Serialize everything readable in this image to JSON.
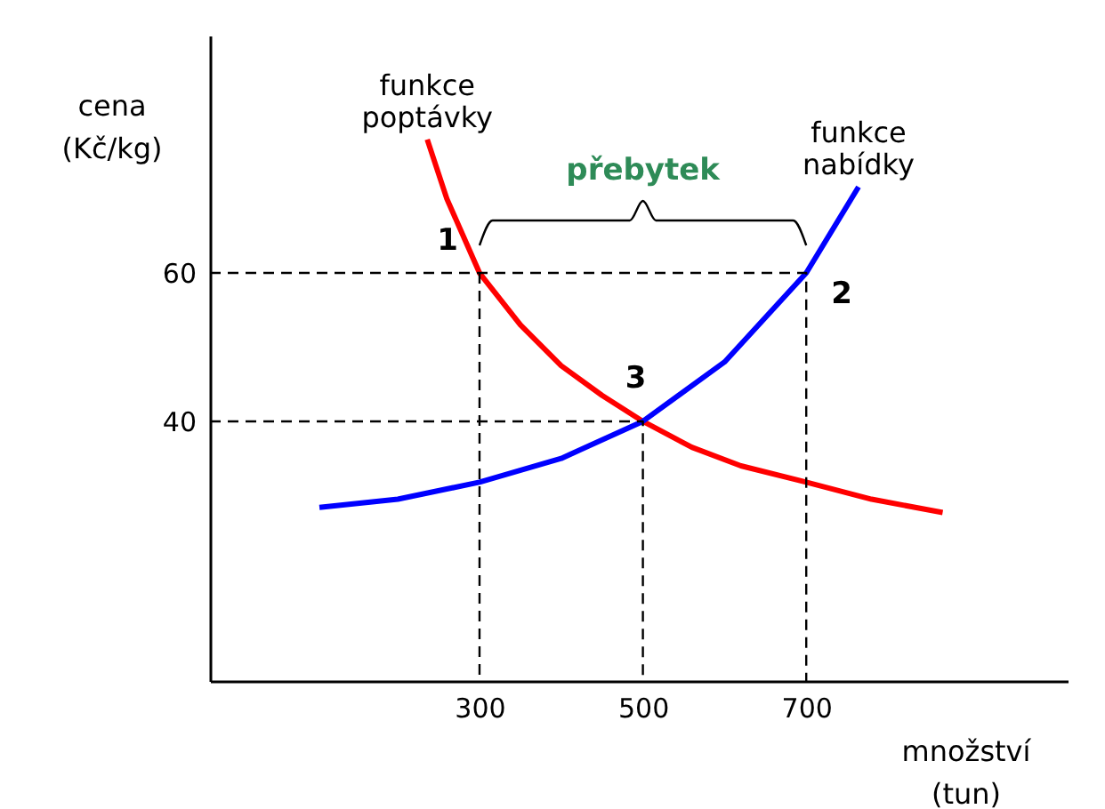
{
  "chart_data": {
    "type": "line",
    "xlabel": "množství (tun)",
    "ylabel": "cena (Kč/kg)",
    "xlim": [
      -30,
      1020
    ],
    "ylim": [
      5,
      92
    ],
    "xticks": [
      300,
      500,
      700
    ],
    "yticks": [
      40,
      60
    ],
    "grid": false,
    "series": [
      {
        "name": "funkce poptávky",
        "color": "#ff0000",
        "x": [
          236,
          260,
          300,
          350,
          400,
          450,
          500,
          560,
          620,
          700,
          780,
          867
        ],
        "values": [
          78,
          70,
          60,
          53,
          47.5,
          43.5,
          40,
          36.5,
          34,
          31.8,
          29.5,
          27.7
        ]
      },
      {
        "name": "funkce nabídky",
        "color": "#0000ff",
        "x": [
          104,
          200,
          300,
          400,
          500,
          600,
          700,
          764
        ],
        "values": [
          28.4,
          29.5,
          31.8,
          35,
          40,
          48,
          60,
          71.6
        ]
      },
      {
        "type": "line",
        "line_style": "dashed",
        "color": "#000000",
        "x": [
          -30,
          700,
          700
        ],
        "values": [
          60,
          60,
          5
        ]
      },
      {
        "type": "line",
        "line_style": "dashed",
        "color": "#000000",
        "x": [
          300,
          300
        ],
        "values": [
          60,
          5
        ]
      },
      {
        "type": "line",
        "line_style": "dashed",
        "color": "#000000",
        "x": [
          -30,
          500,
          500
        ],
        "values": [
          40,
          40,
          5
        ]
      }
    ],
    "annotations": [
      {
        "text": "1",
        "x": 300,
        "y": 60
      },
      {
        "text": "2",
        "x": 700,
        "y": 60
      },
      {
        "text": "3",
        "x": 500,
        "y": 40
      },
      "přebytek"
    ]
  }
}
